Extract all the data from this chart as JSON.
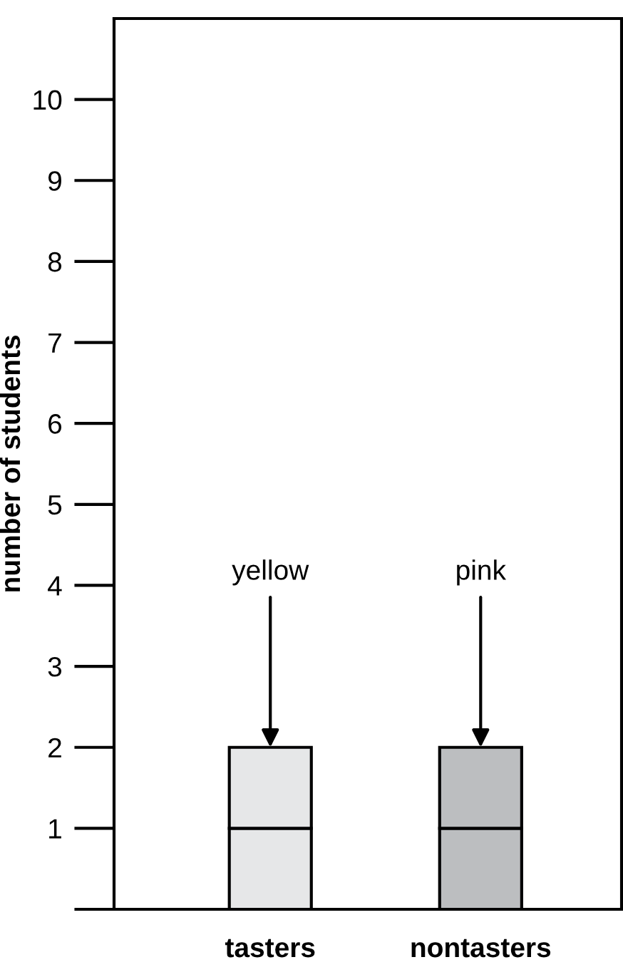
{
  "chart_data": {
    "type": "bar",
    "stacked": true,
    "ylabel": "number of students",
    "categories": [
      "tasters",
      "nontasters"
    ],
    "series": [
      {
        "colors": [
          "#e6e7e8",
          "#bcbec0"
        ],
        "values": [
          1,
          1
        ]
      },
      {
        "colors": [
          "#e6e7e8",
          "#bcbec0"
        ],
        "values": [
          1,
          1
        ]
      }
    ],
    "ylim": [
      0,
      11
    ],
    "yticks": [
      {
        "value": 0,
        "label": null
      },
      1,
      2,
      3,
      4,
      5,
      6,
      7,
      8,
      9,
      10
    ],
    "grid": false,
    "legend": false,
    "annotations": [
      {
        "text": "yellow",
        "x": "tasters",
        "y": 2
      },
      {
        "text": "pink",
        "x": "nontasters",
        "y": 2
      }
    ]
  }
}
